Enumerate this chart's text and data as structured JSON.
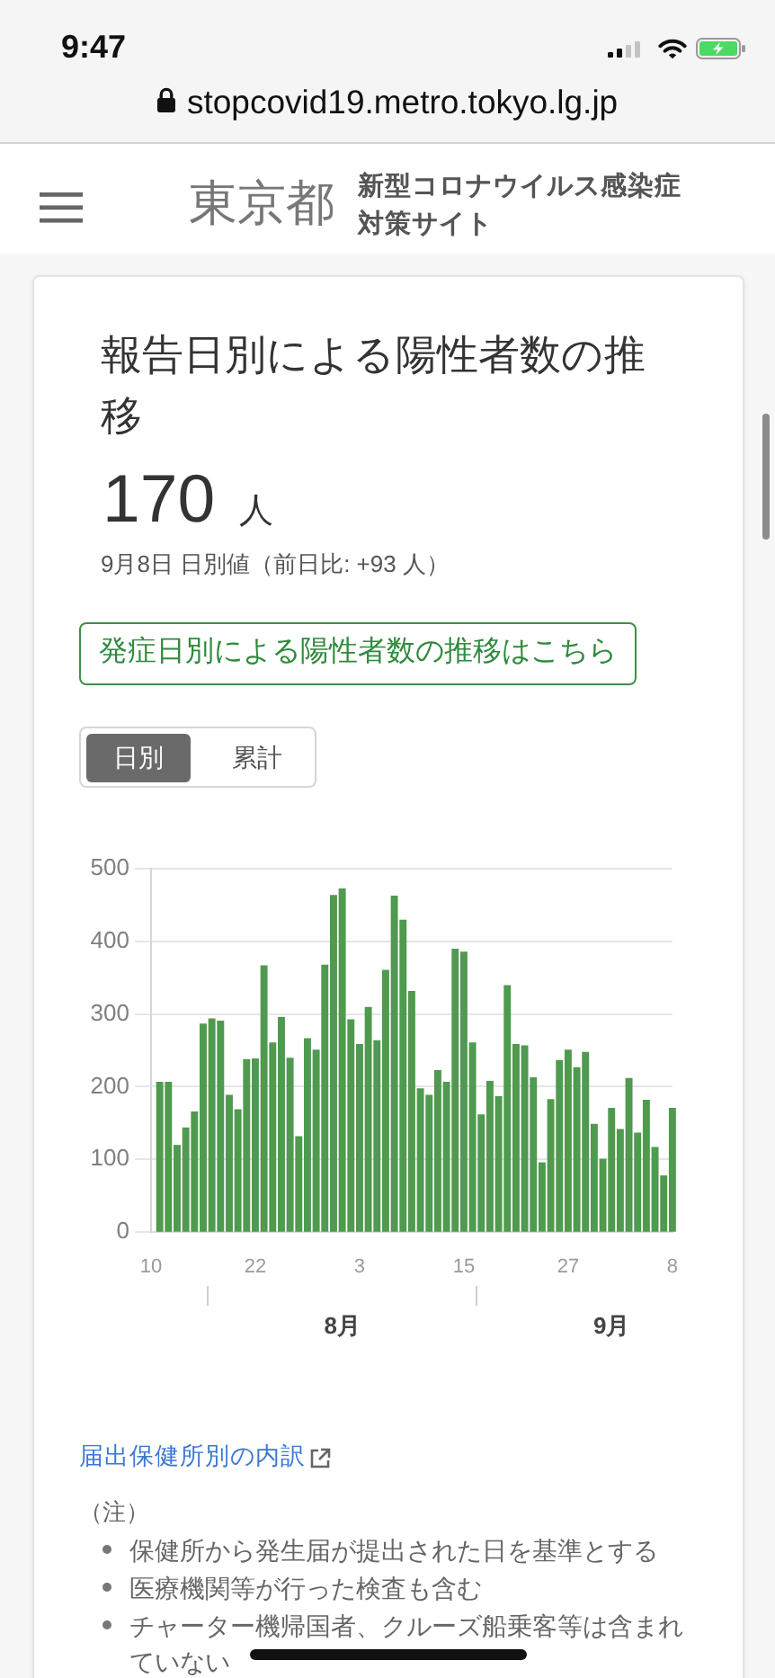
{
  "chart_data": {
    "type": "bar",
    "title": "報告日別による陽性者数の推移",
    "x": [
      "--07-11",
      "--07-12",
      "--07-13",
      "--07-14",
      "--07-15",
      "--07-16",
      "--07-17",
      "--07-18",
      "--07-19",
      "--07-20",
      "--07-21",
      "--07-22",
      "--07-23",
      "--07-24",
      "--07-25",
      "--07-26",
      "--07-27",
      "--07-28",
      "--07-29",
      "--07-30",
      "--07-31",
      "--08-01",
      "--08-02",
      "--08-03",
      "--08-04",
      "--08-05",
      "--08-06",
      "--08-07",
      "--08-08",
      "--08-09",
      "--08-10",
      "--08-11",
      "--08-12",
      "--08-13",
      "--08-14",
      "--08-15",
      "--08-16",
      "--08-17",
      "--08-18",
      "--08-19",
      "--08-20",
      "--08-21",
      "--08-22",
      "--08-23",
      "--08-24",
      "--08-25",
      "--08-26",
      "--08-27",
      "--08-28",
      "--08-29",
      "--08-30",
      "--08-31",
      "--09-01",
      "--09-02",
      "--09-03",
      "--09-04",
      "--09-05",
      "--09-06",
      "--09-07",
      "--09-08"
    ],
    "values": [
      206,
      206,
      119,
      143,
      165,
      286,
      293,
      290,
      188,
      168,
      237,
      238,
      366,
      260,
      295,
      239,
      131,
      266,
      250,
      367,
      463,
      472,
      292,
      258,
      309,
      263,
      360,
      462,
      429,
      331,
      197,
      188,
      222,
      206,
      389,
      385,
      260,
      161,
      207,
      186,
      339,
      258,
      256,
      212,
      95,
      182,
      236,
      250,
      226,
      247,
      148,
      100,
      170,
      141,
      211,
      136,
      181,
      116,
      77,
      170
    ],
    "color": "#4f9a4f",
    "xlim": [
      "--07-10",
      "--09-08"
    ],
    "xticks": [
      {
        "value": "--07-10",
        "label": "10"
      },
      {
        "value": "--07-22",
        "label": "22"
      },
      {
        "value": "--08-03",
        "label": "3"
      },
      {
        "value": "--08-15",
        "label": "15"
      },
      {
        "value": "--08-27",
        "label": "27"
      },
      {
        "value": "--09-08",
        "label": "8"
      }
    ],
    "x2lim": [
      "--07-10",
      "--09-08"
    ],
    "x2ticks": [
      {
        "value": "--08-01",
        "label": "8月"
      },
      {
        "value": "--09-01",
        "label": "9月"
      }
    ],
    "ylim": [
      0,
      500
    ],
    "yticks": [
      0,
      100,
      200,
      300,
      400,
      500
    ],
    "grid": "y",
    "annotations": [
      "9:47",
      "stopcovid19.metro.tokyo.lg.jp",
      "東京都",
      "新型コロナウイルス感染症対策サイト",
      "170 人",
      "9月8日 日別値（前日比: +93 人）",
      "発症日別による陽性者数の推移はこちら",
      "日別",
      "累計",
      "届出保健所別の内訳",
      "（注）",
      "保健所から発生届が提出された日を基準とする",
      "医療機関等が行った検査も含む",
      "チャーター機帰国者、クルーズ船乗客等は含まれていない"
    ]
  }
}
